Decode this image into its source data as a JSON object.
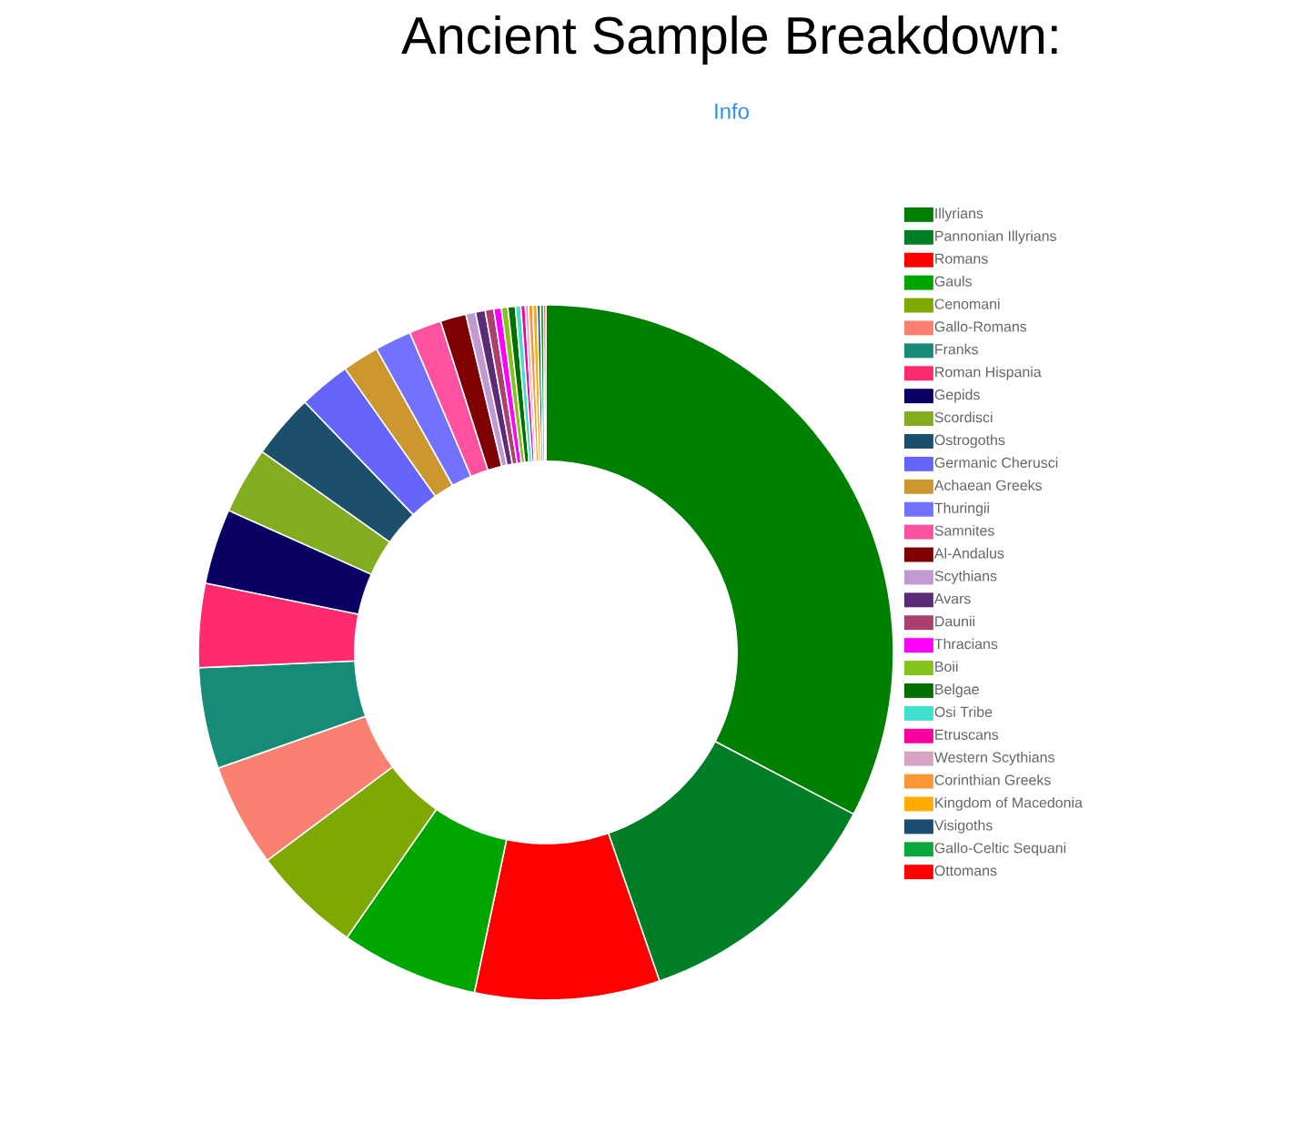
{
  "chart_data": {
    "type": "donut",
    "title": "Ancient Sample Breakdown:",
    "annotations": [
      "Info"
    ],
    "categories": [
      "Illyrians",
      "Pannonian Illyrians",
      "Romans",
      "Gauls",
      "Cenomani",
      "Gallo-Romans",
      "Franks",
      "Roman Hispania",
      "Gepids",
      "Scordisci",
      "Ostrogoths",
      "Germanic Cherusci",
      "Achaean Greeks",
      "Thuringii",
      "Samnites",
      "Al-Andalus",
      "Scythians",
      "Avars",
      "Daunii",
      "Thracians",
      "Boii",
      "Belgae",
      "Osi Tribe",
      "Etruscans",
      "Western Scythians",
      "Corinthian Greeks",
      "Kingdom of Macedonia",
      "Visigoths",
      "Gallo-Celtic Sequani",
      "Ottomans"
    ],
    "values": [
      32.7,
      12.0,
      8.6,
      6.4,
      5.1,
      4.8,
      4.7,
      3.9,
      3.5,
      3.1,
      3.0,
      2.4,
      1.7,
      1.7,
      1.5,
      1.2,
      0.45,
      0.45,
      0.4,
      0.35,
      0.3,
      0.35,
      0.25,
      0.2,
      0.15,
      0.2,
      0.2,
      0.15,
      0.15,
      0.1
    ],
    "colors": [
      "#008000",
      "#007e25",
      "#ff0000",
      "#00a600",
      "#7fa800",
      "#fa8072",
      "#168c78",
      "#fe2c6e",
      "#0a0064",
      "#82ad21",
      "#1b4f6c",
      "#6565fc",
      "#cd9730",
      "#7272fe",
      "#fe52a0",
      "#7f0000",
      "#c19ad3",
      "#5b2b77",
      "#a9406e",
      "#ff00ff",
      "#83c41c",
      "#007100",
      "#40e0d0",
      "#f800a0",
      "#d6a5c3",
      "#fd9634",
      "#ffab00",
      "#1a4d70",
      "#0aa83c",
      "#ff0000"
    ],
    "legend": "right"
  }
}
